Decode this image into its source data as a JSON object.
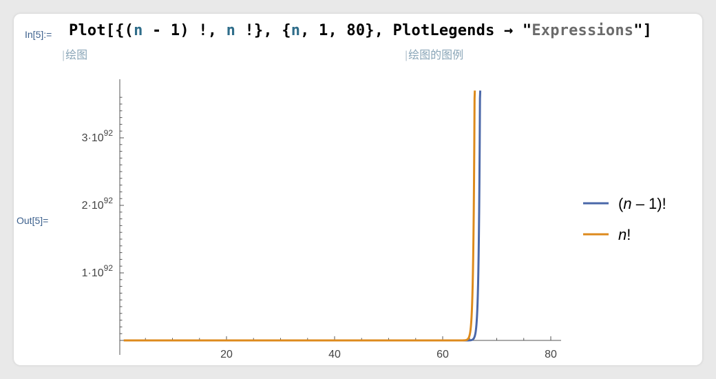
{
  "input": {
    "label": "In[5]:=",
    "tokens": [
      {
        "text": "Plot[{(",
        "cls": ""
      },
      {
        "text": "n",
        "cls": "var"
      },
      {
        "text": " - 1) !, ",
        "cls": ""
      },
      {
        "text": "n",
        "cls": "var"
      },
      {
        "text": " !}, {",
        "cls": ""
      },
      {
        "text": "n",
        "cls": "var"
      },
      {
        "text": ", 1, 80}, PlotLegends → \"",
        "cls": ""
      },
      {
        "text": "Expressions",
        "cls": "str"
      },
      {
        "text": "\"]",
        "cls": ""
      }
    ],
    "hint_plot": "绘图",
    "hint_legends": "绘图的图例"
  },
  "output": {
    "label": "Out[5]="
  },
  "chart_data": {
    "type": "line",
    "x_range": [
      1,
      80
    ],
    "y_range": [
      0,
      3.7e+92
    ],
    "x_ticks": [
      {
        "value": 20,
        "label": "20"
      },
      {
        "value": 40,
        "label": "40"
      },
      {
        "value": 60,
        "label": "60"
      },
      {
        "value": 80,
        "label": "80"
      }
    ],
    "y_ticks": [
      {
        "value": 1e+92,
        "mantissa": "1",
        "label": "1·10",
        "exponent": "92"
      },
      {
        "value": 2e+92,
        "mantissa": "2",
        "label": "2·10",
        "exponent": "92"
      },
      {
        "value": 3e+92,
        "mantissa": "3",
        "label": "3·10",
        "exponent": "92"
      }
    ],
    "series": [
      {
        "name": "(n - 1)!",
        "name_prefix": "(",
        "name_var": "n",
        "name_suffix": " – 1)!",
        "color": "#4a67a8",
        "shift": 1
      },
      {
        "name": "n!",
        "name_prefix": "",
        "name_var": "n",
        "name_suffix": "!",
        "color": "#dd8a1c",
        "shift": 0
      }
    ],
    "legend_position": "right"
  }
}
